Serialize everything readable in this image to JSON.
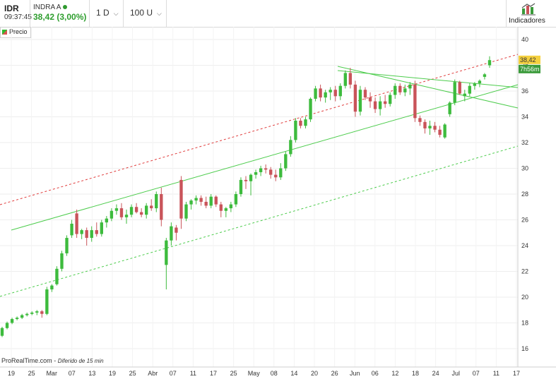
{
  "header": {
    "ticker": "IDR",
    "time": "09:37:45",
    "name": "INDRA A",
    "price": "38,42 (3,00%)",
    "interval": "1 D",
    "units": "100 U",
    "indicators_label": "Indicadores"
  },
  "legend": {
    "label": "Precio"
  },
  "footer": {
    "source": "ProRealTime.com",
    "sep": " - ",
    "delay": "Diferido de 15 min"
  },
  "price_tags": {
    "last": "38,42",
    "countdown": "7h56m"
  },
  "colors": {
    "up": "#3dbb3d",
    "down": "#c9545a",
    "trend_green": "#4ccc4c",
    "trend_red": "#e03c3c",
    "last_price_bg": "#f4d03f",
    "countdown_bg": "#3a9a3a"
  },
  "chart_data": {
    "type": "candlestick",
    "x_tick_labels": [
      "19",
      "25",
      "Mar",
      "07",
      "13",
      "19",
      "25",
      "Abr",
      "07",
      "11",
      "17",
      "25",
      "May",
      "08",
      "14",
      "20",
      "26",
      "Jun",
      "06",
      "12",
      "18",
      "24",
      "Jul",
      "07",
      "11",
      "17"
    ],
    "y_tick_labels": [
      "16",
      "18",
      "20",
      "22",
      "24",
      "26",
      "28",
      "30",
      "32",
      "34",
      "36",
      "38",
      "40"
    ],
    "ylim": [
      15,
      40.7
    ],
    "candles": [
      [
        17.0,
        17.7,
        16.9,
        17.6
      ],
      [
        17.6,
        18.1,
        17.5,
        18.0
      ],
      [
        18.0,
        18.4,
        17.9,
        18.3
      ],
      [
        18.3,
        18.5,
        18.2,
        18.4
      ],
      [
        18.4,
        18.7,
        18.3,
        18.6
      ],
      [
        18.6,
        18.8,
        18.5,
        18.7
      ],
      [
        18.7,
        18.9,
        18.6,
        18.8
      ],
      [
        18.8,
        19.0,
        18.6,
        18.9
      ],
      [
        18.9,
        19.0,
        18.4,
        18.7
      ],
      [
        18.7,
        20.8,
        18.6,
        20.6
      ],
      [
        20.6,
        21.0,
        20.4,
        20.9
      ],
      [
        21.0,
        22.4,
        20.9,
        22.2
      ],
      [
        22.2,
        23.6,
        22.0,
        23.4
      ],
      [
        23.4,
        24.8,
        23.2,
        24.6
      ],
      [
        24.8,
        26.0,
        24.6,
        25.7
      ],
      [
        26.5,
        26.8,
        24.6,
        24.9
      ],
      [
        24.9,
        25.3,
        24.5,
        25.2
      ],
      [
        25.2,
        25.4,
        24.0,
        24.6
      ],
      [
        24.6,
        25.5,
        24.3,
        25.2
      ],
      [
        25.2,
        25.8,
        24.7,
        24.9
      ],
      [
        24.9,
        26.0,
        24.7,
        25.8
      ],
      [
        25.8,
        26.3,
        25.4,
        26.1
      ],
      [
        26.1,
        26.9,
        25.9,
        26.7
      ],
      [
        26.7,
        27.2,
        26.4,
        26.9
      ],
      [
        26.9,
        27.3,
        26.0,
        26.2
      ],
      [
        26.2,
        26.8,
        25.7,
        26.4
      ],
      [
        26.4,
        27.2,
        26.2,
        27.0
      ],
      [
        27.0,
        27.3,
        26.5,
        26.6
      ],
      [
        26.6,
        26.9,
        26.2,
        26.4
      ],
      [
        26.4,
        27.3,
        26.1,
        27.1
      ],
      [
        27.1,
        27.6,
        26.7,
        26.9
      ],
      [
        26.9,
        28.2,
        26.6,
        28.0
      ],
      [
        28.0,
        28.5,
        25.5,
        26.0
      ],
      [
        22.5,
        24.6,
        20.6,
        24.4
      ],
      [
        24.4,
        25.8,
        24.0,
        25.5
      ],
      [
        25.4,
        25.6,
        24.4,
        25.0
      ],
      [
        29.1,
        29.4,
        25.3,
        26.1
      ],
      [
        26.1,
        27.4,
        25.9,
        27.2
      ],
      [
        27.2,
        27.6,
        26.8,
        27.5
      ],
      [
        27.5,
        27.9,
        27.2,
        27.7
      ],
      [
        27.7,
        27.9,
        27.1,
        27.4
      ],
      [
        27.4,
        27.8,
        26.9,
        27.1
      ],
      [
        27.1,
        28.0,
        26.9,
        27.8
      ],
      [
        27.8,
        27.9,
        27.0,
        27.2
      ],
      [
        27.2,
        27.4,
        26.2,
        26.7
      ],
      [
        26.7,
        27.0,
        26.2,
        26.9
      ],
      [
        26.9,
        27.4,
        26.6,
        27.2
      ],
      [
        27.2,
        28.2,
        27.0,
        28.0
      ],
      [
        28.0,
        29.3,
        27.8,
        29.1
      ],
      [
        29.1,
        29.4,
        28.4,
        29.0
      ],
      [
        29.0,
        29.6,
        27.9,
        29.5
      ],
      [
        29.5,
        29.9,
        29.2,
        29.7
      ],
      [
        29.7,
        30.2,
        29.4,
        30.0
      ],
      [
        30.0,
        30.3,
        29.6,
        29.9
      ],
      [
        29.9,
        30.1,
        29.2,
        29.5
      ],
      [
        29.5,
        29.9,
        29.0,
        29.3
      ],
      [
        29.3,
        30.4,
        29.1,
        30.0
      ],
      [
        30.0,
        31.3,
        29.8,
        31.1
      ],
      [
        31.1,
        32.5,
        30.9,
        32.2
      ],
      [
        32.2,
        33.9,
        32.0,
        33.7
      ],
      [
        33.7,
        33.9,
        33.1,
        33.3
      ],
      [
        33.3,
        34.0,
        33.1,
        33.8
      ],
      [
        33.8,
        35.5,
        33.6,
        35.4
      ],
      [
        35.4,
        36.4,
        35.2,
        36.2
      ],
      [
        36.2,
        36.5,
        35.2,
        35.5
      ],
      [
        35.5,
        36.1,
        35.1,
        35.9
      ],
      [
        35.9,
        36.3,
        35.3,
        36.1
      ],
      [
        36.1,
        36.4,
        35.2,
        35.6
      ],
      [
        35.6,
        36.6,
        35.3,
        36.4
      ],
      [
        36.4,
        37.6,
        36.2,
        37.4
      ],
      [
        37.4,
        37.8,
        36.2,
        36.5
      ],
      [
        36.5,
        36.8,
        34.0,
        34.4
      ],
      [
        34.4,
        36.4,
        34.1,
        36.1
      ],
      [
        36.1,
        36.3,
        35.3,
        35.5
      ],
      [
        35.5,
        35.9,
        34.7,
        35.2
      ],
      [
        35.2,
        35.5,
        34.3,
        34.6
      ],
      [
        34.6,
        35.6,
        34.1,
        35.2
      ],
      [
        35.2,
        35.7,
        34.7,
        35.0
      ],
      [
        35.0,
        35.9,
        34.8,
        35.7
      ],
      [
        35.7,
        36.6,
        35.4,
        36.4
      ],
      [
        36.4,
        36.6,
        35.7,
        35.9
      ],
      [
        35.9,
        36.5,
        35.6,
        36.2
      ],
      [
        36.2,
        36.7,
        35.7,
        36.5
      ],
      [
        36.5,
        36.8,
        33.6,
        33.9
      ],
      [
        33.9,
        34.1,
        33.3,
        33.6
      ],
      [
        33.6,
        33.8,
        32.7,
        33.1
      ],
      [
        33.1,
        33.7,
        32.6,
        33.3
      ],
      [
        33.3,
        33.6,
        32.8,
        33.0
      ],
      [
        33.0,
        33.3,
        32.4,
        32.6
      ],
      [
        32.4,
        33.5,
        32.3,
        33.4
      ],
      [
        34.2,
        35.2,
        34.0,
        35.1
      ],
      [
        35.1,
        36.9,
        34.9,
        36.7
      ],
      [
        36.7,
        36.8,
        35.7,
        35.8
      ],
      [
        35.6,
        36.1,
        35.2,
        35.8
      ],
      [
        35.8,
        36.6,
        35.6,
        36.4
      ],
      [
        36.4,
        36.7,
        36.1,
        36.6
      ],
      [
        36.6,
        36.9,
        36.3,
        36.8
      ],
      [
        37.1,
        37.4,
        36.9,
        37.3
      ],
      [
        38.0,
        38.7,
        37.8,
        38.4
      ]
    ]
  }
}
